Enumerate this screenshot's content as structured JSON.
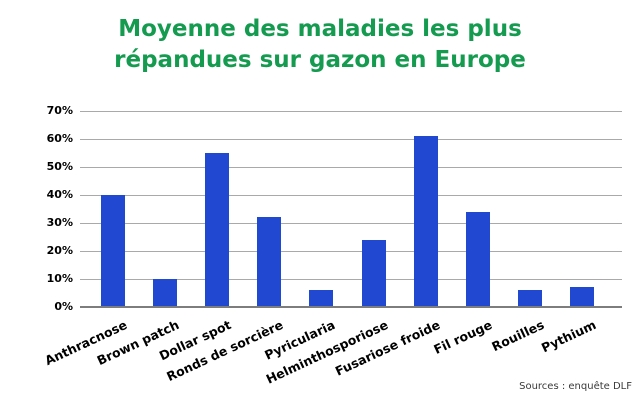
{
  "header": {
    "title_lines": [
      "Moyenne des maladies les plus",
      "répandues sur gazon en Europe"
    ]
  },
  "footer": {
    "source": "Sources : enquête DLF"
  },
  "colors": {
    "background": "#ffffff",
    "title": "#149b4f",
    "bar": "#2148d1",
    "gridline": "#a9a9a9",
    "axis": "#7d7d7d",
    "label": "#000000",
    "source_text": "#3a3a3a"
  },
  "chart_data": {
    "type": "bar",
    "title": "Moyenne des maladies les plus répandues sur gazon en Europe",
    "categories": [
      "Anthracnose",
      "Brown patch",
      "Dollar spot",
      "Ronds de sorcière",
      "Pyricularia",
      "Helminthosporiose",
      "Fusariose froide",
      "Fil rouge",
      "Rouilles",
      "Pythium"
    ],
    "values": [
      40,
      10,
      55,
      32,
      6,
      24,
      61,
      34,
      6,
      7
    ],
    "value_unit": "%",
    "xlabel": "",
    "ylabel": "",
    "ylim": [
      0,
      70
    ],
    "ytick_step": 10,
    "ytick_labels": [
      "0%",
      "10%",
      "20%",
      "30%",
      "40%",
      "50%",
      "60%",
      "70%"
    ],
    "grid": true,
    "legend": false,
    "source": "Sources : enquête DLF"
  }
}
